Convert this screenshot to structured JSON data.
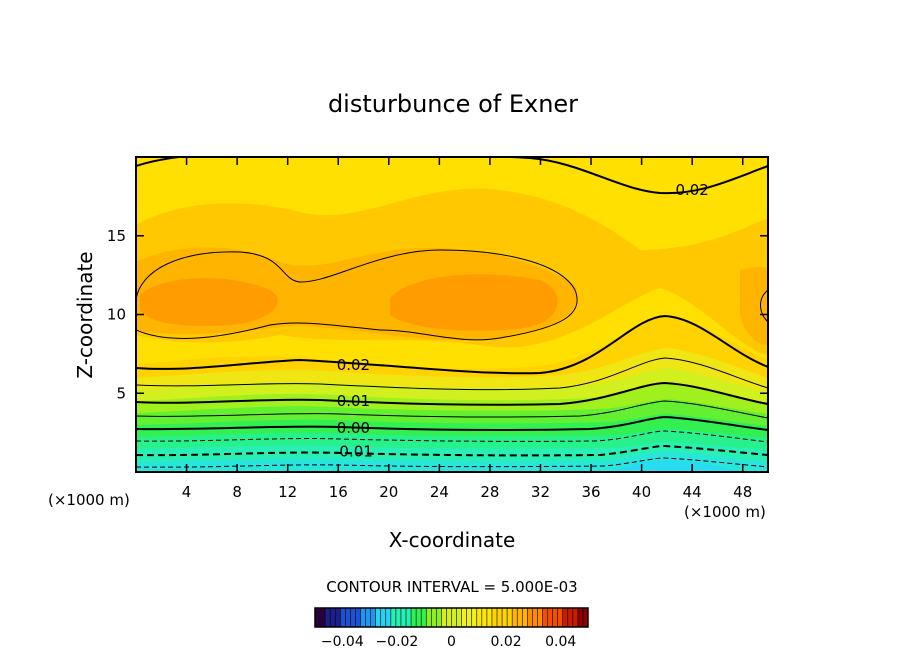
{
  "chart_data": {
    "type": "contour",
    "title": "disturbunce of Exner",
    "xlabel": "X-coordinate",
    "ylabel": "Z-coordinate",
    "x_unit_label": "(×1000 m)",
    "xlim": [
      0,
      50
    ],
    "ylim": [
      0,
      20
    ],
    "x_ticks": [
      4,
      8,
      12,
      16,
      20,
      24,
      28,
      32,
      36,
      40,
      44,
      48
    ],
    "y_ticks": [
      5,
      10,
      15
    ],
    "contour_interval_text": "CONTOUR INTERVAL = 5.000E-03",
    "contour_labels": [
      {
        "text": "0.02",
        "x": 44,
        "z": 17.9
      },
      {
        "text": "0.02",
        "x": 17.2,
        "z": 6.8
      },
      {
        "text": "0.01",
        "x": 17.2,
        "z": 4.5
      },
      {
        "text": "0.00",
        "x": 17.2,
        "z": 2.8
      },
      {
        "text": "-0.01",
        "x": 17.2,
        "z": 1.3
      }
    ],
    "colorbar": {
      "range": [
        -0.05,
        0.05
      ],
      "ticks": [
        -0.04,
        -0.02,
        0,
        0.02,
        0.04
      ],
      "tick_labels": [
        "−0.04",
        "−0.02",
        "0",
        "0.02",
        "0.04"
      ],
      "colors": [
        "#2a0040",
        "#1e1e8c",
        "#1e50d2",
        "#1e96f0",
        "#28d2f0",
        "#28f0b4",
        "#32f050",
        "#8cf01e",
        "#d2f01e",
        "#f0f01e",
        "#ffe600",
        "#ffd200",
        "#ffb400",
        "#ff8c00",
        "#f05000",
        "#c81e00",
        "#8c0000"
      ]
    }
  }
}
